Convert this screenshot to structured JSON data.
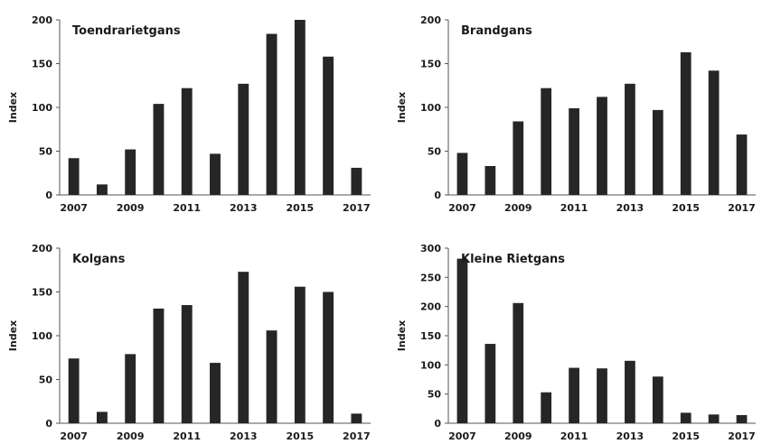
{
  "chart_data": [
    {
      "type": "bar",
      "title": "Toendrarietgans",
      "ylabel": "Index",
      "xlabel": "",
      "ylim": [
        0,
        200
      ],
      "yticks": [
        0,
        50,
        100,
        150,
        200
      ],
      "categories": [
        "2007",
        "2008",
        "2009",
        "2010",
        "2011",
        "2012",
        "2013",
        "2014",
        "2015",
        "2016",
        "2017"
      ],
      "xtick_labels": [
        "2007",
        "2009",
        "2011",
        "2013",
        "2015",
        "2017"
      ],
      "values": [
        42,
        12,
        52,
        104,
        122,
        47,
        127,
        184,
        200,
        158,
        31
      ],
      "bar_color": "#262626",
      "grid": false
    },
    {
      "type": "bar",
      "title": "Brandgans",
      "ylabel": "Index",
      "xlabel": "",
      "ylim": [
        0,
        200
      ],
      "yticks": [
        0,
        50,
        100,
        150,
        200
      ],
      "categories": [
        "2007",
        "2008",
        "2009",
        "2010",
        "2011",
        "2012",
        "2013",
        "2014",
        "2015",
        "2016",
        "2017"
      ],
      "xtick_labels": [
        "2007",
        "2009",
        "2011",
        "2013",
        "2015",
        "2017"
      ],
      "values": [
        48,
        33,
        84,
        122,
        99,
        112,
        127,
        97,
        163,
        142,
        69
      ],
      "bar_color": "#262626",
      "grid": false
    },
    {
      "type": "bar",
      "title": "Kolgans",
      "ylabel": "Index",
      "xlabel": "",
      "ylim": [
        0,
        200
      ],
      "yticks": [
        0,
        50,
        100,
        150,
        200
      ],
      "categories": [
        "2007",
        "2008",
        "2009",
        "2010",
        "2011",
        "2012",
        "2013",
        "2014",
        "2015",
        "2016",
        "2017"
      ],
      "xtick_labels": [
        "2007",
        "2009",
        "2011",
        "2013",
        "2015",
        "2017"
      ],
      "values": [
        74,
        13,
        79,
        131,
        135,
        69,
        173,
        106,
        156,
        150,
        11
      ],
      "bar_color": "#262626",
      "grid": false
    },
    {
      "type": "bar",
      "title": "Kleine Rietgans",
      "ylabel": "Index",
      "xlabel": "",
      "ylim": [
        0,
        300
      ],
      "yticks": [
        0,
        50,
        100,
        150,
        200,
        250,
        300
      ],
      "categories": [
        "2007",
        "2008",
        "2009",
        "2010",
        "2011",
        "2012",
        "2013",
        "2014",
        "2015",
        "2016",
        "2017"
      ],
      "xtick_labels": [
        "2007",
        "2009",
        "2011",
        "2013",
        "2015",
        "2017"
      ],
      "values": [
        282,
        136,
        206,
        53,
        95,
        94,
        107,
        80,
        18,
        15,
        14
      ],
      "bar_color": "#262626",
      "grid": false
    }
  ]
}
